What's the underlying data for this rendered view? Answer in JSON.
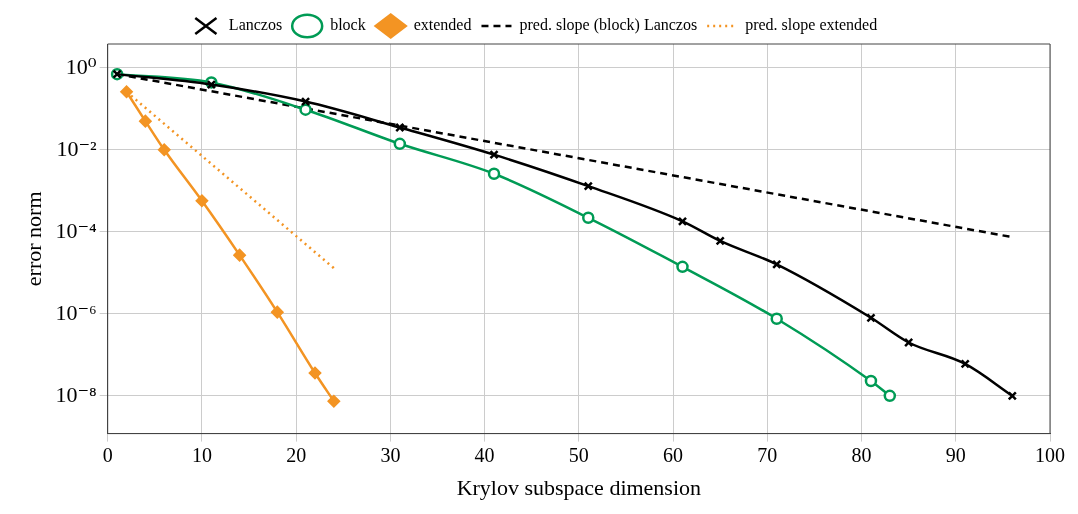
{
  "chart_data": {
    "type": "line",
    "xlabel": "Krylov subspace dimension",
    "ylabel": "error norm",
    "log": "y",
    "grid": true,
    "legend": "top",
    "xlim": [
      0,
      100
    ],
    "xticks": [
      0,
      10,
      20,
      30,
      40,
      50,
      60,
      70,
      80,
      90,
      100
    ],
    "ylim": [
      1.2e-09,
      3.8
    ],
    "yticks": [
      {
        "value": 1,
        "label": "10⁰"
      },
      {
        "value": 0.01,
        "label": "10⁻²"
      },
      {
        "value": 0.0001,
        "label": "10⁻⁴"
      },
      {
        "value": 1e-06,
        "label": "10⁻⁶"
      },
      {
        "value": 1e-08,
        "label": "10⁻⁸"
      }
    ],
    "series": [
      {
        "name": "Lanczos",
        "color": "#000000",
        "marker": "cross",
        "line_style": "solid",
        "x": [
          1,
          11,
          21,
          31,
          41,
          51,
          61,
          65,
          71,
          81,
          85,
          91,
          96
        ],
        "values": [
          0.7,
          0.39,
          0.15,
          0.035,
          0.0076,
          0.0013,
          0.00018,
          6e-05,
          1.6e-05,
          8e-07,
          2e-07,
          6e-08,
          1e-08
        ]
      },
      {
        "name": "block",
        "color": "#009b55",
        "marker": "circle",
        "line_style": "solid",
        "x": [
          1,
          11,
          21,
          31,
          41,
          51,
          61,
          71,
          81,
          83
        ],
        "values": [
          0.7,
          0.44,
          0.095,
          0.014,
          0.0026,
          0.00022,
          1.4e-05,
          7.6e-07,
          2.3e-08,
          1e-08
        ]
      },
      {
        "name": "extended",
        "color": "#f39423",
        "marker": "diamond",
        "line_style": "solid",
        "x": [
          2,
          4,
          6,
          10,
          14,
          18,
          22,
          24
        ],
        "values": [
          0.26,
          0.05,
          0.01,
          0.00057,
          2.7e-05,
          1.1e-06,
          3.6e-08,
          7.4e-09
        ]
      },
      {
        "name": "pred. slope (block) Lanczos",
        "color": "#000000",
        "marker": "none",
        "line_style": "dashed",
        "x": [
          1,
          96
        ],
        "values": [
          0.7,
          7.4e-05
        ]
      },
      {
        "name": "pred. slope extended",
        "color": "#f39423",
        "marker": "none",
        "line_style": "dotted",
        "x": [
          2,
          24
        ],
        "values": [
          0.26,
          1.3e-05
        ]
      }
    ]
  }
}
